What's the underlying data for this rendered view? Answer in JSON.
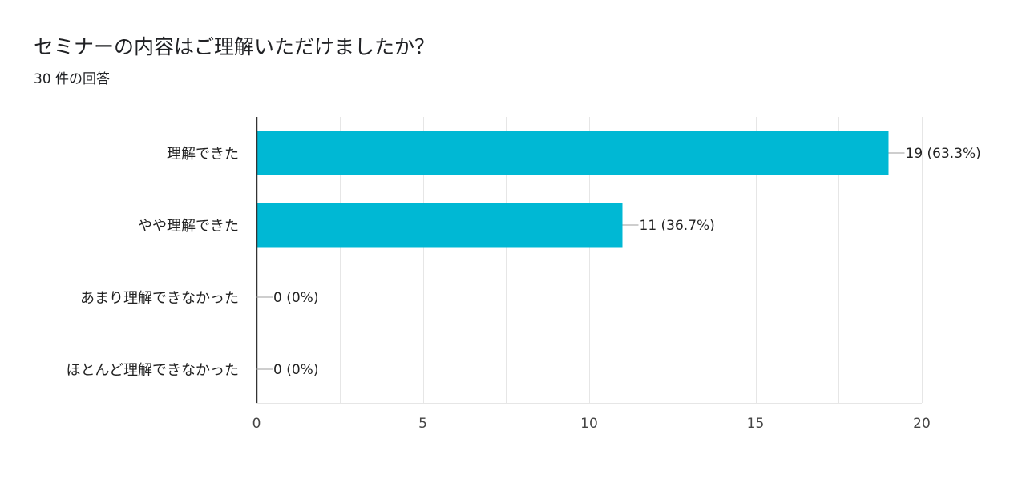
{
  "title": "セミナーの内容はご理解いただけましたか？",
  "subtitle": "30 件の回答",
  "colors": {
    "bar": "#00b8d4",
    "grid": "#e6e6e6",
    "axis": "#333333",
    "leader": "#9e9e9e"
  },
  "chart_data": {
    "type": "bar",
    "orientation": "horizontal",
    "categories": [
      "理解できた",
      "やや理解できた",
      "あまり理解できなかった",
      "ほとんど理解できなかった"
    ],
    "values": [
      19,
      11,
      0,
      0
    ],
    "data_labels": [
      "19 (63.3%)",
      "11 (36.7%)",
      "0 (0%)",
      "0 (0%)"
    ],
    "xlim": [
      0,
      20
    ],
    "xticks": [
      "0",
      "5",
      "10",
      "15",
      "20"
    ],
    "grid": true,
    "legend": "none"
  }
}
